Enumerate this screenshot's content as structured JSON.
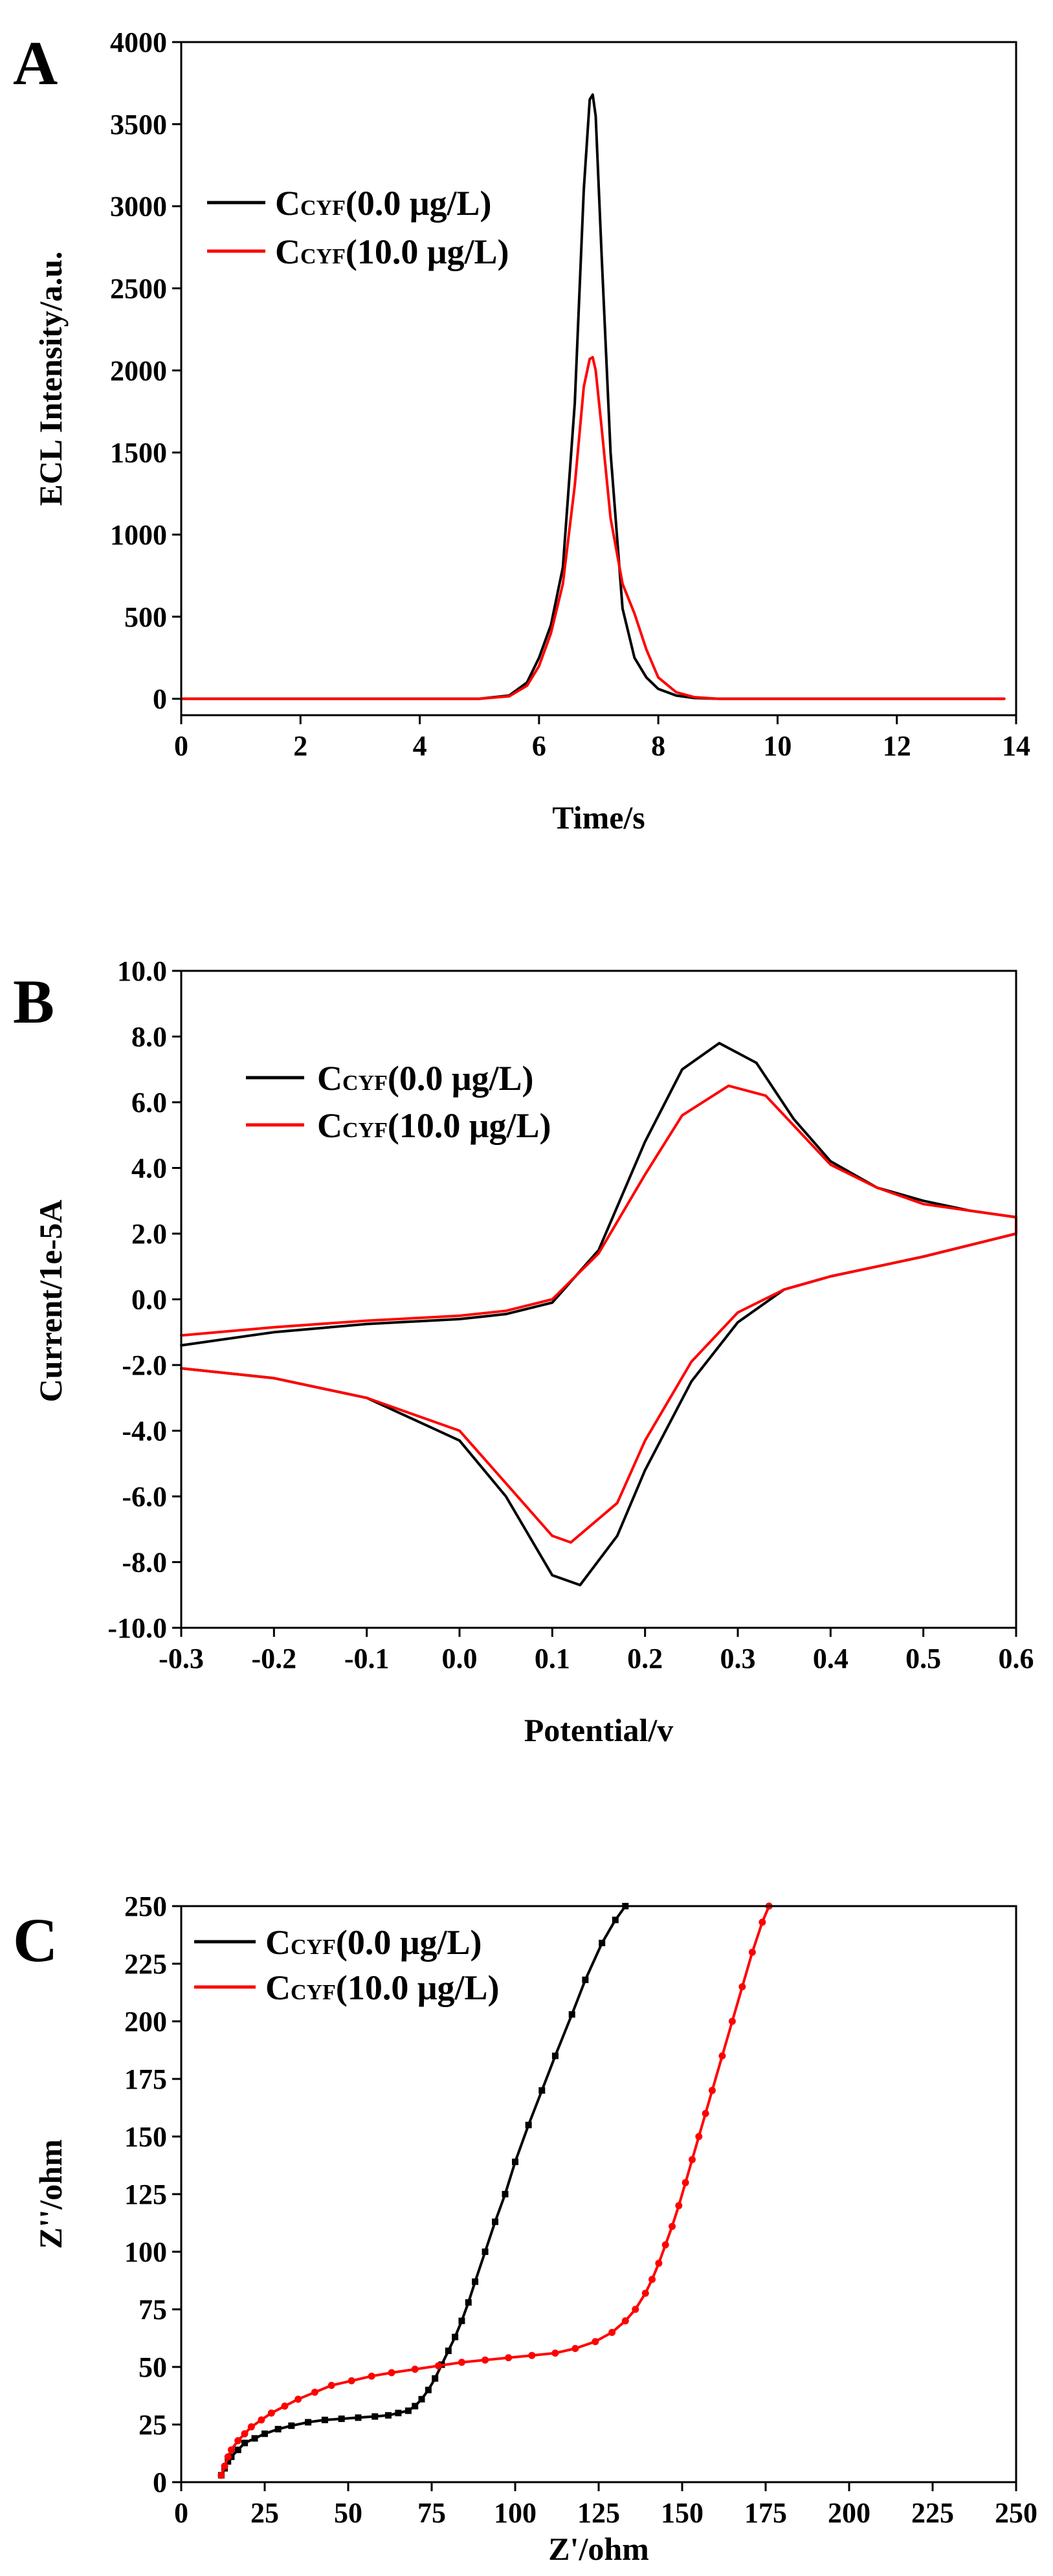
{
  "figure_title": "",
  "chart_data": [
    {
      "panel": "A",
      "type": "line",
      "title": "",
      "xlabel": "Time/s",
      "ylabel": "ECL Intensity/a.u.",
      "xlim": [
        0,
        14
      ],
      "ylim": [
        -100,
        4000
      ],
      "xticks": [
        0,
        2,
        4,
        6,
        8,
        10,
        12,
        14
      ],
      "yticks": [
        0,
        500,
        1000,
        1500,
        2000,
        2500,
        3000,
        3500,
        4000
      ],
      "legend_position": "top-left",
      "series": [
        {
          "name": "0.0 μg/L",
          "legend_main": "C",
          "legend_sub": "CYF",
          "legend_value": "(0.0 μg/L)",
          "color": "#000000",
          "x": [
            0,
            5.0,
            5.5,
            5.8,
            6.0,
            6.2,
            6.4,
            6.6,
            6.75,
            6.85,
            6.9,
            6.95,
            7.05,
            7.2,
            7.4,
            7.6,
            7.8,
            8.0,
            8.3,
            8.6,
            9.0,
            13.8
          ],
          "y": [
            0,
            0,
            20,
            100,
            250,
            450,
            800,
            1800,
            3100,
            3650,
            3680,
            3550,
            2700,
            1500,
            550,
            250,
            130,
            60,
            20,
            5,
            0,
            0
          ]
        },
        {
          "name": "10.0 μg/L",
          "legend_main": "C",
          "legend_sub": "CYF",
          "legend_value": "(10.0 μg/L)",
          "color": "#ff0000",
          "x": [
            0,
            5.0,
            5.5,
            5.8,
            6.0,
            6.2,
            6.4,
            6.6,
            6.75,
            6.85,
            6.9,
            6.95,
            7.05,
            7.2,
            7.4,
            7.6,
            7.8,
            8.0,
            8.3,
            8.6,
            9.0,
            13.8
          ],
          "y": [
            0,
            0,
            15,
            80,
            200,
            400,
            700,
            1300,
            1900,
            2070,
            2080,
            2000,
            1650,
            1100,
            700,
            520,
            300,
            130,
            40,
            10,
            0,
            0
          ]
        }
      ]
    },
    {
      "panel": "B",
      "type": "line",
      "title": "",
      "xlabel": "Potential/v",
      "ylabel": "Current/1e-5A",
      "xlim": [
        -0.3,
        0.6
      ],
      "ylim": [
        -10,
        10
      ],
      "xticks": [
        -0.3,
        -0.2,
        -0.1,
        0.0,
        0.1,
        0.2,
        0.3,
        0.4,
        0.5,
        0.6
      ],
      "xtick_labels": [
        "-0.3",
        "-0.2",
        "-0.1",
        "0.0",
        "0.1",
        "0.2",
        "0.3",
        "0.4",
        "0.5",
        "0.6"
      ],
      "yticks": [
        -10,
        -8,
        -6,
        -4,
        -2,
        0,
        2,
        4,
        6,
        8,
        10
      ],
      "ytick_labels": [
        "-10.0",
        "-8.0",
        "-6.0",
        "-4.0",
        "-2.0",
        "0.0",
        "2.0",
        "4.0",
        "6.0",
        "8.0",
        "10.0"
      ],
      "legend_position": "top-left",
      "series": [
        {
          "name": "0.0 μg/L",
          "legend_main": "C",
          "legend_sub": "CYF",
          "legend_value": "(0.0 μg/L)",
          "color": "#000000",
          "x": [
            -0.3,
            -0.2,
            -0.1,
            0.0,
            0.05,
            0.1,
            0.15,
            0.2,
            0.24,
            0.28,
            0.32,
            0.36,
            0.4,
            0.45,
            0.5,
            0.55,
            0.6,
            0.6,
            0.5,
            0.45,
            0.4,
            0.35,
            0.3,
            0.25,
            0.2,
            0.17,
            0.13,
            0.1,
            0.05,
            0.0,
            -0.1,
            -0.2,
            -0.3
          ],
          "y": [
            -1.4,
            -1.0,
            -0.75,
            -0.6,
            -0.45,
            -0.1,
            1.5,
            4.8,
            7.0,
            7.8,
            7.2,
            5.5,
            4.2,
            3.4,
            3.0,
            2.7,
            2.5,
            2.0,
            1.3,
            1.0,
            0.7,
            0.3,
            -0.7,
            -2.5,
            -5.2,
            -7.2,
            -8.7,
            -8.4,
            -6.0,
            -4.3,
            -3.0,
            -2.4,
            -2.1
          ]
        },
        {
          "name": "10.0 μg/L",
          "legend_main": "C",
          "legend_sub": "CYF",
          "legend_value": "(10.0 μg/L)",
          "color": "#ff0000",
          "x": [
            -0.3,
            -0.2,
            -0.1,
            0.0,
            0.05,
            0.1,
            0.15,
            0.2,
            0.24,
            0.29,
            0.33,
            0.37,
            0.4,
            0.45,
            0.5,
            0.55,
            0.6,
            0.6,
            0.5,
            0.45,
            0.4,
            0.35,
            0.3,
            0.25,
            0.2,
            0.17,
            0.12,
            0.1,
            0.05,
            0.0,
            -0.1,
            -0.2,
            -0.3
          ],
          "y": [
            -1.1,
            -0.85,
            -0.65,
            -0.5,
            -0.35,
            0.0,
            1.4,
            3.8,
            5.6,
            6.5,
            6.2,
            5.0,
            4.1,
            3.4,
            2.9,
            2.7,
            2.5,
            2.0,
            1.3,
            1.0,
            0.7,
            0.3,
            -0.4,
            -1.9,
            -4.3,
            -6.2,
            -7.4,
            -7.2,
            -5.6,
            -4.0,
            -3.0,
            -2.4,
            -2.1
          ]
        }
      ]
    },
    {
      "panel": "C",
      "type": "line",
      "title": "",
      "xlabel": "Z'/ohm",
      "ylabel": "Z''/ohm",
      "xlim": [
        0,
        250
      ],
      "ylim": [
        0,
        250
      ],
      "xticks": [
        0,
        25,
        50,
        75,
        100,
        125,
        150,
        175,
        200,
        225,
        250
      ],
      "yticks": [
        0,
        25,
        50,
        75,
        100,
        125,
        150,
        175,
        200,
        225,
        250
      ],
      "legend_position": "top-left",
      "series": [
        {
          "name": "0.0 μg/L",
          "legend_main": "C",
          "legend_sub": "CYF",
          "legend_value": "(0.0 μg/L)",
          "color": "#000000",
          "marker": "square",
          "x": [
            12,
            13,
            14,
            15,
            17,
            19,
            22,
            25,
            29,
            33,
            38,
            43,
            48,
            53,
            58,
            62,
            65,
            68,
            70,
            72,
            74,
            76,
            78,
            80,
            82,
            84,
            86,
            88,
            91,
            94,
            97,
            100,
            104,
            108,
            112,
            117,
            121,
            126,
            130,
            133
          ],
          "y": [
            3,
            6,
            9,
            11,
            14,
            17,
            19,
            21,
            23,
            24.5,
            26,
            27,
            27.5,
            28,
            28.5,
            29,
            30,
            31,
            33,
            36,
            40,
            45,
            51,
            57,
            63,
            70,
            78,
            87,
            100,
            113,
            125,
            139,
            155,
            170,
            185,
            203,
            218,
            234,
            244,
            250
          ]
        },
        {
          "name": "10.0 μg/L",
          "legend_main": "C",
          "legend_sub": "CYF",
          "legend_value": "(10.0 μg/L)",
          "color": "#ff0000",
          "marker": "circle",
          "x": [
            12,
            13,
            14,
            15,
            17,
            19,
            21,
            24,
            27,
            31,
            35,
            40,
            45,
            51,
            57,
            63,
            70,
            77,
            84,
            91,
            98,
            105,
            112,
            118,
            124,
            129,
            133,
            136,
            139,
            141,
            143,
            145,
            147,
            149,
            151,
            153,
            155,
            157,
            159,
            162,
            165,
            168,
            171,
            174,
            176
          ],
          "y": [
            3,
            7,
            11,
            14,
            18,
            21,
            24,
            27,
            30,
            33,
            36,
            39,
            42,
            44,
            46,
            47.5,
            49,
            50.5,
            52,
            53,
            54,
            55,
            56,
            58,
            61,
            65,
            70,
            75,
            82,
            88,
            95,
            103,
            111,
            120,
            130,
            140,
            150,
            160,
            170,
            185,
            200,
            215,
            230,
            243,
            250
          ]
        }
      ]
    }
  ]
}
